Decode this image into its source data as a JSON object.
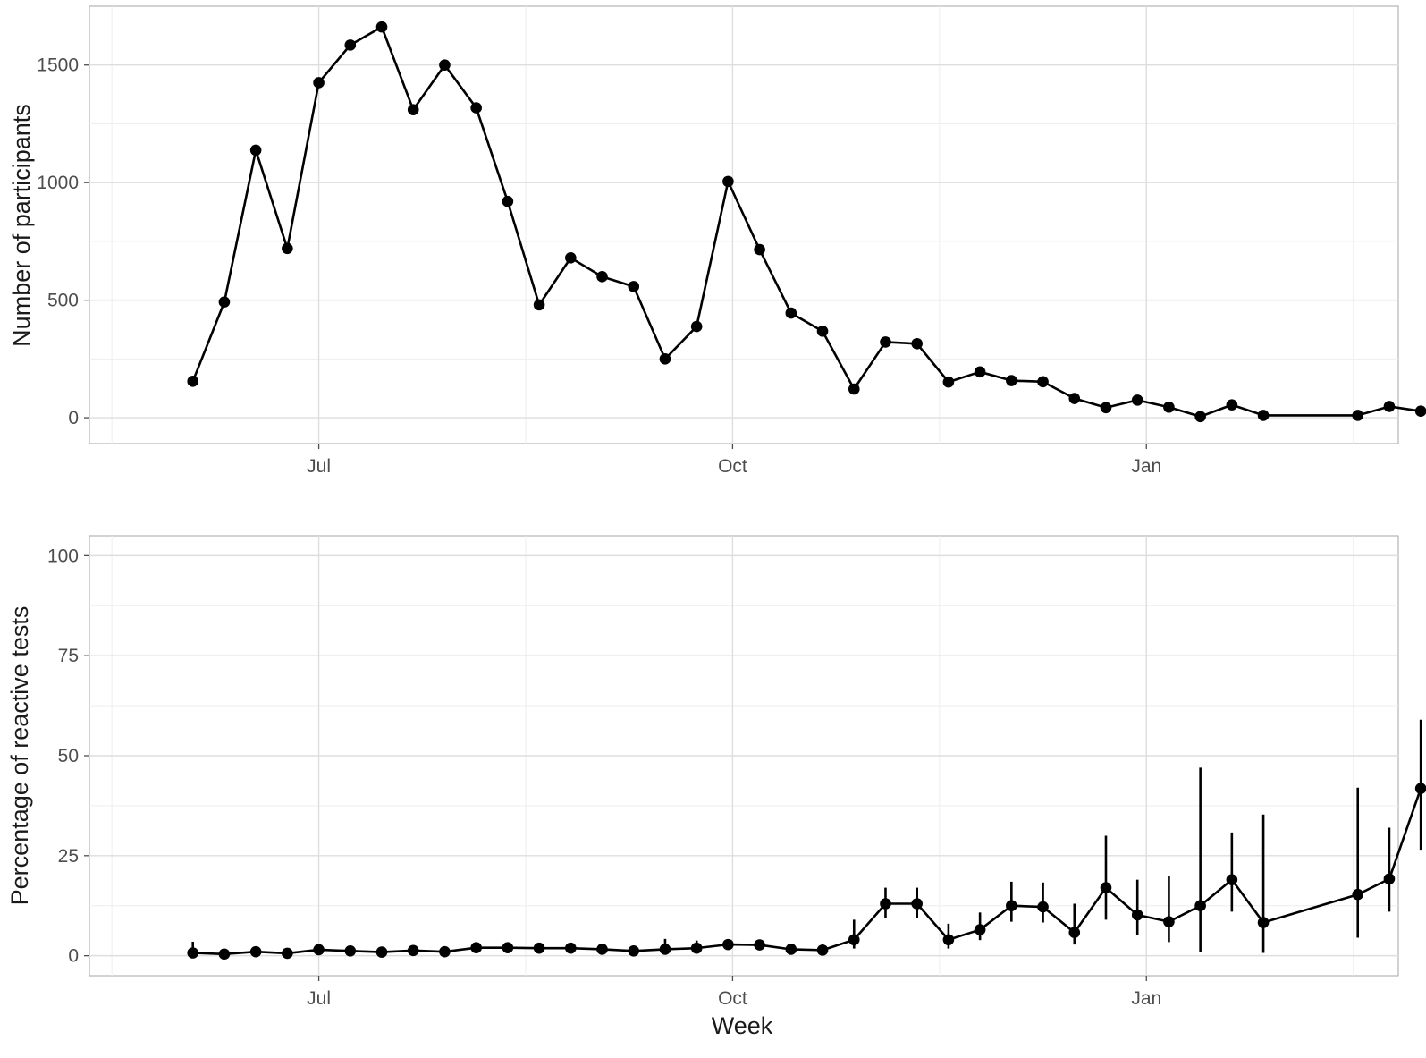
{
  "chart_data": [
    {
      "type": "line",
      "title": "",
      "xlabel": "",
      "ylabel": "Number of participants",
      "x_axis_type": "date",
      "xlim": [
        "2020-05-11",
        "2021-02-26"
      ],
      "ylim": [
        -110,
        1750
      ],
      "x_ticks": [
        {
          "date": "2020-07-01",
          "label": "Jul"
        },
        {
          "date": "2020-10-01",
          "label": "Oct"
        },
        {
          "date": "2021-01-01",
          "label": "Jan"
        }
      ],
      "y_ticks": [
        0,
        500,
        1000,
        1500
      ],
      "grid": true,
      "legend": "none",
      "color": "#000000",
      "x": [
        "2020-06-03",
        "2020-06-10",
        "2020-06-17",
        "2020-06-24",
        "2020-07-01",
        "2020-07-08",
        "2020-07-15",
        "2020-07-22",
        "2020-07-29",
        "2020-08-05",
        "2020-08-12",
        "2020-08-19",
        "2020-08-26",
        "2020-09-02",
        "2020-09-09",
        "2020-09-16",
        "2020-09-23",
        "2020-09-30",
        "2020-10-07",
        "2020-10-14",
        "2020-10-21",
        "2020-10-28",
        "2020-11-04",
        "2020-11-11",
        "2020-11-18",
        "2020-11-25",
        "2020-12-02",
        "2020-12-09",
        "2020-12-16",
        "2020-12-23",
        "2020-12-30",
        "2021-01-06",
        "2021-01-13",
        "2021-01-20",
        "2021-01-27",
        "2021-02-03",
        "2021-02-10",
        "2021-02-17",
        "2021-02-24",
        "2021-03-03"
      ],
      "y_raw": [
        155,
        492,
        1138,
        720,
        1425,
        1585,
        1662,
        1310,
        1500,
        1318,
        920,
        480,
        680,
        600,
        558,
        250,
        388,
        1005,
        715,
        445,
        368,
        122,
        322,
        315,
        152,
        195,
        158,
        153,
        82,
        43,
        75,
        45,
        5,
        55,
        10,
        null,
        null,
        10,
        48,
        28
      ]
    },
    {
      "type": "line",
      "title": "",
      "xlabel": "Week",
      "ylabel": "Percentage of reactive tests",
      "x_axis_type": "date",
      "xlim": [
        "2020-05-11",
        "2021-02-26"
      ],
      "ylim": [
        -5,
        105
      ],
      "x_ticks": [
        {
          "date": "2020-07-01",
          "label": "Jul"
        },
        {
          "date": "2020-10-01",
          "label": "Oct"
        },
        {
          "date": "2021-01-01",
          "label": "Jan"
        }
      ],
      "y_ticks": [
        0,
        25,
        50,
        75,
        100
      ],
      "grid": true,
      "legend": "none",
      "color": "#000000",
      "x": [
        "2020-06-03",
        "2020-06-10",
        "2020-06-17",
        "2020-06-24",
        "2020-07-01",
        "2020-07-08",
        "2020-07-15",
        "2020-07-22",
        "2020-07-29",
        "2020-08-05",
        "2020-08-12",
        "2020-08-19",
        "2020-08-26",
        "2020-09-02",
        "2020-09-09",
        "2020-09-16",
        "2020-09-23",
        "2020-09-30",
        "2020-10-07",
        "2020-10-14",
        "2020-10-21",
        "2020-10-28",
        "2020-11-04",
        "2020-11-11",
        "2020-11-18",
        "2020-11-25",
        "2020-12-02",
        "2020-12-09",
        "2020-12-16",
        "2020-12-23",
        "2020-12-30",
        "2021-01-06",
        "2021-01-13",
        "2021-01-20",
        "2021-01-27",
        "2021-02-03",
        "2021-02-10",
        "2021-02-17",
        "2021-02-24",
        "2021-03-03"
      ],
      "y_raw": [
        0.7,
        0.4,
        1.0,
        0.6,
        1.5,
        1.2,
        0.9,
        1.3,
        1.0,
        2.0,
        2.0,
        1.9,
        1.9,
        1.6,
        1.2,
        1.6,
        1.9,
        2.8,
        2.7,
        1.6,
        1.4,
        4.0,
        13.0,
        13.0,
        4.0,
        6.5,
        12.5,
        12.2,
        5.8,
        17.0,
        10.2,
        8.5,
        12.5,
        19.0,
        8.3,
        null,
        null,
        15.3,
        19.2,
        41.8
      ],
      "lower_raw": [
        0.1,
        0.1,
        0.5,
        0.1,
        0.9,
        0.7,
        0.4,
        0.7,
        0.6,
        1.3,
        1.3,
        1.2,
        1.3,
        1.0,
        0.6,
        0.4,
        1.0,
        1.9,
        1.6,
        0.7,
        0.5,
        1.8,
        9.5,
        9.5,
        1.8,
        3.9,
        8.5,
        8.3,
        2.8,
        9.0,
        5.2,
        3.4,
        0.8,
        11.0,
        0.7,
        null,
        null,
        4.5,
        11.0,
        26.5
      ],
      "upper_raw": [
        3.5,
        1.5,
        2.0,
        1.8,
        2.5,
        2.1,
        1.8,
        2.4,
        1.9,
        3.0,
        3.0,
        2.8,
        2.8,
        2.4,
        2.2,
        4.2,
        3.8,
        3.8,
        3.9,
        2.8,
        3.0,
        9.0,
        17.0,
        17.0,
        8.0,
        10.8,
        18.5,
        18.3,
        13.0,
        30.0,
        19.0,
        20.0,
        47.0,
        30.8,
        35.3,
        null,
        null,
        42.0,
        32.0,
        59.0
      ]
    }
  ]
}
